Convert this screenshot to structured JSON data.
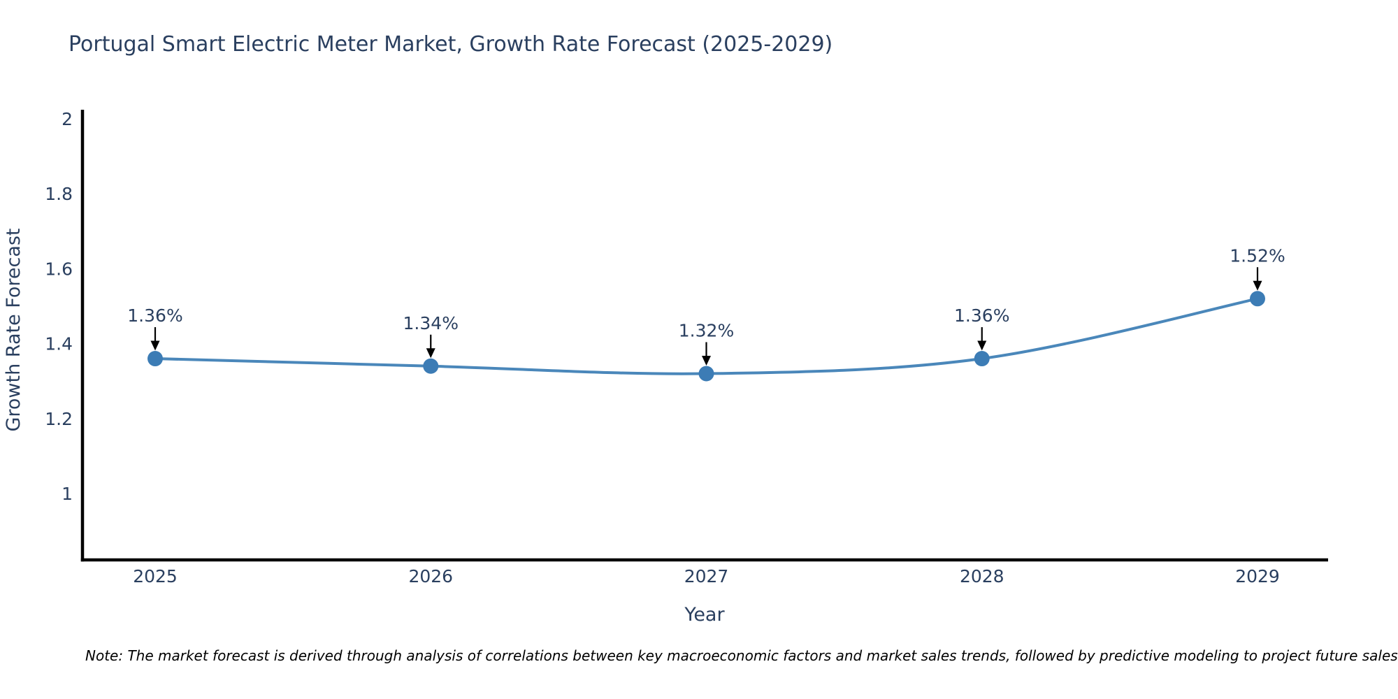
{
  "chart": {
    "title": "Portugal Smart Electric Meter Market, Growth Rate Forecast (2025-2029)",
    "note": "Note: The market forecast is derived through analysis of correlations between key macroeconomic factors and market sales trends, followed by predictive modeling to project future sales"
  },
  "chart_data": {
    "type": "line",
    "title": "Portugal Smart Electric Meter Market, Growth Rate Forecast (2025-2029)",
    "xlabel": "Year",
    "ylabel": "Growth Rate Forecast",
    "x": [
      2025,
      2026,
      2027,
      2028,
      2029
    ],
    "values": [
      1.36,
      1.34,
      1.32,
      1.36,
      1.52
    ],
    "point_labels": [
      "1.36%",
      "1.34%",
      "1.32%",
      "1.36%",
      "1.52%"
    ],
    "yticks": [
      2,
      1.8,
      1.6,
      1.4,
      1.2,
      1
    ],
    "ylim": [
      0.83,
      2.02
    ],
    "grid": false,
    "legend": "none",
    "line_color": "#4a87ba",
    "marker_color": "#3c7cb5",
    "axis_color": "#000000",
    "text_color": "#2a3f5f",
    "annotation_color": "#000000",
    "note_color": "#000000"
  }
}
